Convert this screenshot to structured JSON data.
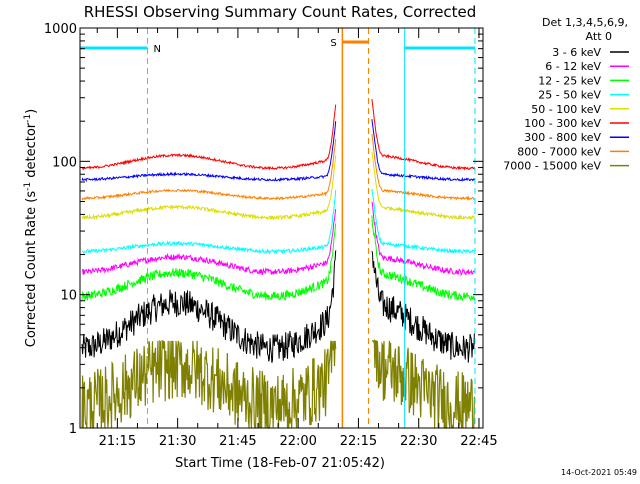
{
  "chart_data": {
    "type": "line",
    "title": "RHESSI Observing Summary Count Rates, Corrected",
    "xlabel": "Start Time (18-Feb-07 21:05:42)",
    "ylabel_main": "Corrected Count Rate (s",
    "ylabel_sup1": "-1",
    "ylabel_mid": " detector",
    "ylabel_sup2": "-1",
    "ylabel_end": ")",
    "y_scale": "log",
    "ylim": [
      1,
      1000
    ],
    "xlim": [
      "21:05:42",
      "22:46:00"
    ],
    "y_ticks": [
      {
        "value": 1,
        "label": "1"
      },
      {
        "value": 10,
        "label": "10"
      },
      {
        "value": 100,
        "label": "100"
      },
      {
        "value": 1000,
        "label": "1000"
      }
    ],
    "x_ticks": [
      {
        "value": 15,
        "label": "21:15"
      },
      {
        "value": 30,
        "label": "21:30"
      },
      {
        "value": 45,
        "label": "21:45"
      },
      {
        "value": 60,
        "label": "22:00"
      },
      {
        "value": 75,
        "label": "22:15"
      },
      {
        "value": 90,
        "label": "22:30"
      },
      {
        "value": 105,
        "label": "22:45"
      }
    ],
    "legend_header": [
      "Det 1,3,4,5,6,9,",
      "Att 0"
    ],
    "series": [
      {
        "name": "3 - 6 keV",
        "color": "#000000",
        "base": 5.0,
        "hump": 2.2,
        "noise": 0.25
      },
      {
        "name": "6 - 12 keV",
        "color": "#ff00ff",
        "base": 16.0,
        "hump": 1.3,
        "noise": 0.05
      },
      {
        "name": "12 - 25 keV",
        "color": "#00ff00",
        "base": 11.0,
        "hump": 1.5,
        "noise": 0.08
      },
      {
        "name": "25 - 50 keV",
        "color": "#00ffff",
        "base": 22.0,
        "hump": 1.15,
        "noise": 0.03
      },
      {
        "name": "50 - 100 keV",
        "color": "#dddd00",
        "base": 40.0,
        "hump": 1.2,
        "noise": 0.03
      },
      {
        "name": "100 - 300 keV",
        "color": "#ff0000",
        "base": 95.0,
        "hump": 1.25,
        "noise": 0.02
      },
      {
        "name": "300 - 800 keV",
        "color": "#0000ff",
        "base": 75.0,
        "hump": 1.1,
        "noise": 0.02
      },
      {
        "name": "800 - 7000 keV",
        "color": "#ff8000",
        "base": 55.0,
        "hump": 1.15,
        "noise": 0.02
      },
      {
        "name": "7000 - 15000 keV",
        "color": "#808000",
        "base": 1.8,
        "hump": 2.0,
        "noise": 0.6
      }
    ],
    "night_label": "N",
    "saa_label": "S",
    "night_intervals": [
      [
        "21:05:42",
        "21:22:30"
      ],
      [
        "22:26:30",
        "22:44:00"
      ]
    ],
    "saa_interval": [
      "22:11:00",
      "22:17:30"
    ],
    "timestamp": "14-Oct-2021 05:49"
  }
}
